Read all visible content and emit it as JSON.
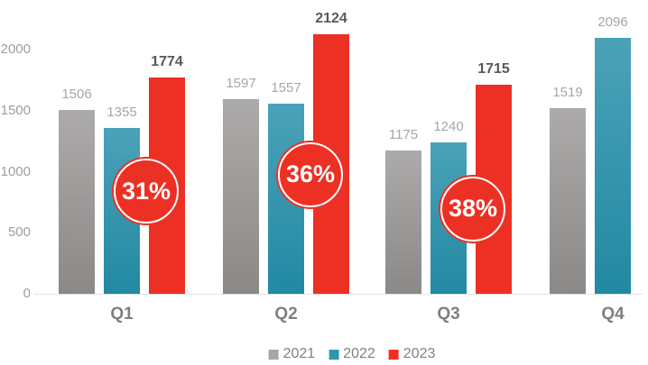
{
  "chart_data": {
    "type": "bar",
    "title": "",
    "categories": [
      "Q1",
      "Q2",
      "Q3",
      "Q4"
    ],
    "series": [
      {
        "name": "2021",
        "values": [
          1506,
          1597,
          1175,
          1519
        ],
        "color": "#a6a6a6",
        "gradient_top": "#adabaa",
        "gradient_bottom": "#8b8987",
        "label_color": "#a6a6a6",
        "label_bold": false
      },
      {
        "name": "2022",
        "values": [
          1355,
          1557,
          1240,
          2096
        ],
        "color": "#2e96ad",
        "gradient_top": "#4aa2b8",
        "gradient_bottom": "#2289a3",
        "label_color": "#a6a6a6",
        "label_bold": false
      },
      {
        "name": "2023",
        "values": [
          1774,
          2124,
          1715,
          null
        ],
        "color": "#ed3024",
        "gradient_top": "#ed3024",
        "gradient_bottom": "#ed3024",
        "label_color": "#595959",
        "label_bold": true
      }
    ],
    "annotations": [
      {
        "label": "31%",
        "category": "Q1",
        "at_value": 840
      },
      {
        "label": "36%",
        "category": "Q2",
        "at_value": 975
      },
      {
        "label": "38%",
        "category": "Q3",
        "at_value": 695
      }
    ],
    "y_ticks": [
      0,
      500,
      1000,
      1500,
      2000
    ],
    "ylim": [
      0,
      2400
    ],
    "grid": false,
    "legend_position": "bottom",
    "annotation_fill": "#ed3024",
    "annotation_text_color": "#ffffff"
  },
  "colors": {
    "background": "#ffffff",
    "tick_label": "#9e9e9e",
    "category_label": "#7f7f7f",
    "legend_text": "#808080",
    "axis_line": "#e3e3e3"
  }
}
